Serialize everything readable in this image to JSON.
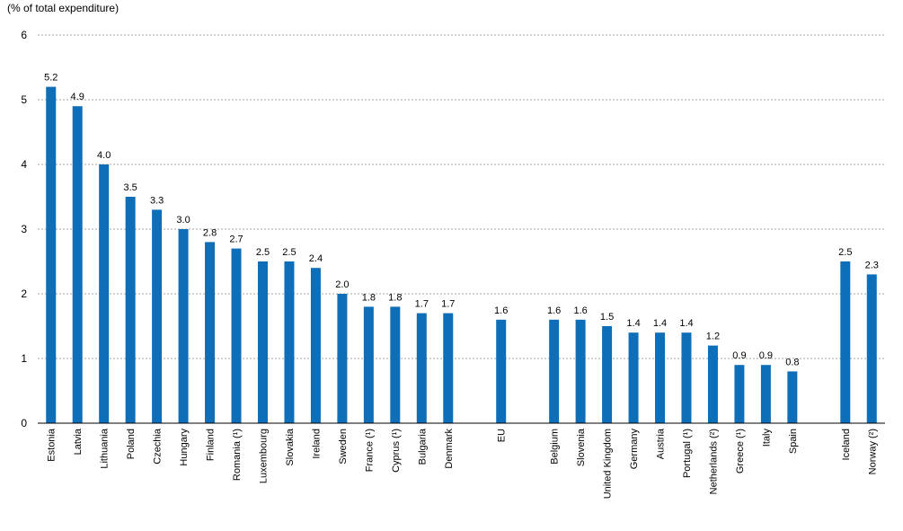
{
  "chart_data": {
    "type": "bar",
    "ylabel": "(% of total expenditure)",
    "ylim": [
      0,
      6
    ],
    "yticks": [
      0,
      1,
      2,
      3,
      4,
      5,
      6
    ],
    "grid": true,
    "bar_color": "#0e6eb8",
    "categories": [
      "Estonia",
      "Latvia",
      "Lithuania",
      "Poland",
      "Czechia",
      "Hungary",
      "Finland",
      "Romania (¹)",
      "Luxembourg",
      "Slovakia",
      "Ireland",
      "Sweden",
      "France (¹)",
      "Cyprus (¹)",
      "Bulgaria",
      "Denmark",
      "",
      "EU",
      "",
      "Belgium",
      "Slovenia",
      "United Kingdom",
      "Germany",
      "Austria",
      "Portugal (¹)",
      "Netherlands (²)",
      "Greece (¹)",
      "Italy",
      "Spain",
      "",
      "Iceland",
      "Norway (²)"
    ],
    "values": [
      5.2,
      4.9,
      4.0,
      3.5,
      3.3,
      3.0,
      2.8,
      2.7,
      2.5,
      2.5,
      2.4,
      2.0,
      1.8,
      1.8,
      1.7,
      1.7,
      null,
      1.6,
      null,
      1.6,
      1.6,
      1.5,
      1.4,
      1.4,
      1.4,
      1.2,
      0.9,
      0.9,
      0.8,
      null,
      2.5,
      2.3
    ],
    "value_labels": [
      "5.2",
      "4.9",
      "4.0",
      "3.5",
      "3.3",
      "3.0",
      "2.8",
      "2.7",
      "2.5",
      "2.5",
      "2.4",
      "2.0",
      "1.8",
      "1.8",
      "1.7",
      "1.7",
      "",
      "1.6",
      "",
      "1.6",
      "1.6",
      "1.5",
      "1.4",
      "1.4",
      "1.4",
      "1.2",
      "0.9",
      "0.9",
      "0.8",
      "",
      "2.5",
      "2.3"
    ]
  }
}
